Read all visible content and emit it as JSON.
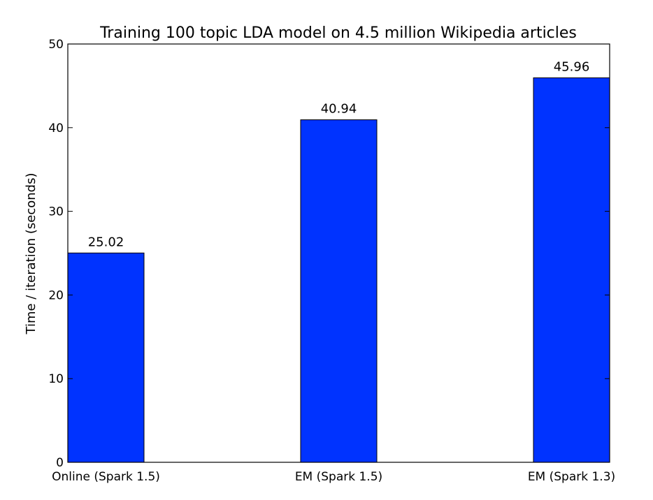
{
  "chart_data": {
    "type": "bar",
    "title": "Training 100 topic LDA model on 4.5 million Wikipedia articles",
    "xlabel": "",
    "ylabel": "Time / iteration (seconds)",
    "categories": [
      "Online (Spark 1.5)",
      "EM (Spark 1.5)",
      "EM (Spark 1.3)"
    ],
    "values": [
      25.02,
      40.94,
      45.96
    ],
    "data_labels": [
      "25.02",
      "40.94",
      "45.96"
    ],
    "ylim": [
      0,
      50
    ],
    "yticks": [
      0,
      10,
      20,
      30,
      40,
      50
    ],
    "grid": false,
    "bar_color": "#0033ff",
    "bar_edge_color": "#000000"
  }
}
